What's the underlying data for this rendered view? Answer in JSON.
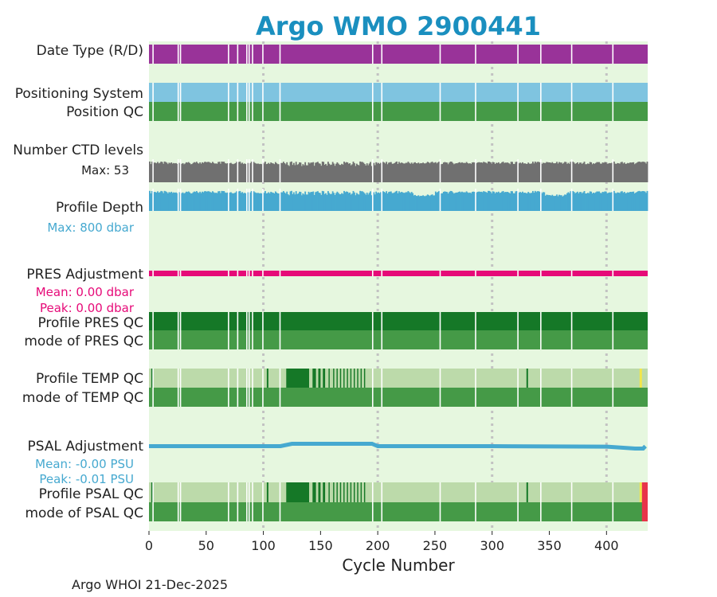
{
  "chart_data": {
    "type": "timeline",
    "title": "Argo WMO 2900441",
    "xlabel": "Cycle Number",
    "xlim": [
      0,
      436
    ],
    "xticks": [
      0,
      50,
      100,
      150,
      200,
      250,
      300,
      350,
      400
    ],
    "vgrid": [
      100,
      200,
      300,
      400
    ],
    "colors": {
      "background": "#e6f7df",
      "purple": "#993399",
      "lightblue": "#7fc4e0",
      "green": "#459a47",
      "darkgreen": "#157827",
      "palegreen": "#bcdaaa",
      "gray": "#707070",
      "cyan": "#46a9d0",
      "magenta": "#e60a78",
      "yellow": "#f2e64a",
      "red": "#e8344a",
      "title": "#1a8fbf"
    },
    "gaps": [
      3,
      25,
      27,
      69,
      77,
      85,
      87,
      90,
      99,
      114,
      195,
      203,
      254,
      285,
      322,
      342,
      369,
      405
    ],
    "rows": [
      {
        "id": "date-type",
        "label": "Date Type (R/D)"
      },
      {
        "id": "positioning-system",
        "label": "Positioning System"
      },
      {
        "id": "position-qc",
        "label": "Position QC"
      },
      {
        "id": "ctd-levels",
        "label": "Number CTD levels",
        "stat": "Max: 53"
      },
      {
        "id": "profile-depth",
        "label": "Profile Depth",
        "stat": "Max:  800 dbar"
      },
      {
        "id": "pres-adjustment",
        "label": "PRES Adjustment",
        "stats": [
          "Mean: 0.00 dbar",
          "Peak: 0.00 dbar"
        ]
      },
      {
        "id": "profile-pres-qc",
        "label": "Profile PRES QC"
      },
      {
        "id": "mode-pres-qc",
        "label": "mode of PRES QC"
      },
      {
        "id": "profile-temp-qc",
        "label": "Profile TEMP QC"
      },
      {
        "id": "mode-temp-qc",
        "label": "mode of TEMP QC"
      },
      {
        "id": "psal-adjustment",
        "label": "PSAL Adjustment",
        "stats": [
          "Mean: -0.00 PSU",
          "Peak: -0.01 PSU"
        ]
      },
      {
        "id": "profile-psal-qc",
        "label": "Profile PSAL QC"
      },
      {
        "id": "mode-psal-qc",
        "label": "mode of PSAL QC"
      }
    ],
    "temp_qc_darkgreen_ranges": [
      [
        120,
        140
      ],
      [
        143,
        146
      ],
      [
        148,
        150
      ],
      [
        152,
        154
      ],
      [
        157,
        158
      ],
      [
        161,
        162
      ],
      [
        164,
        165
      ],
      [
        167,
        168
      ],
      [
        170,
        171
      ],
      [
        173,
        174
      ],
      [
        176,
        177
      ],
      [
        179,
        180
      ],
      [
        182,
        183
      ],
      [
        185,
        186
      ],
      [
        188,
        189
      ]
    ],
    "temp_qc_ticks": [
      2,
      103,
      330
    ],
    "psal_adjustment": {
      "x": [
        0,
        100,
        115,
        125,
        195,
        200,
        205,
        300,
        400,
        425,
        432,
        434
      ],
      "y": [
        0,
        0,
        0,
        0.1,
        0.1,
        0,
        0,
        0,
        -0.02,
        -0.1,
        -0.1,
        0
      ]
    },
    "psal_qc_red_start": 431
  },
  "footer": "Argo WHOI 21-Dec-2025"
}
